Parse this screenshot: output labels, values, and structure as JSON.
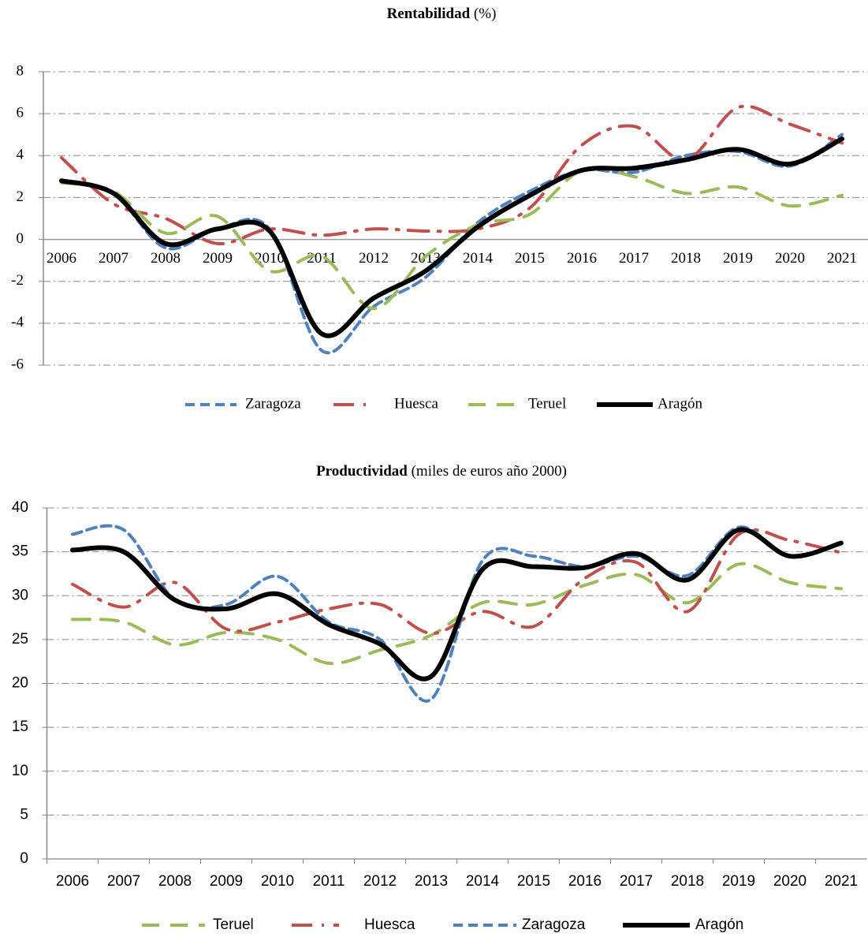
{
  "chart_data": [
    {
      "type": "line",
      "title": "Rentabilidad",
      "subtitle": "(%)",
      "categories": [
        "2006",
        "2007",
        "2008",
        "2009",
        "2010",
        "2011",
        "2012",
        "2013",
        "2014",
        "2015",
        "2016",
        "2017",
        "2018",
        "2019",
        "2020",
        "2021"
      ],
      "ylim": [
        -6,
        8
      ],
      "yticks": [
        -6,
        -4,
        -2,
        0,
        2,
        4,
        6,
        8
      ],
      "grid": true,
      "legend": "bottom",
      "series": [
        {
          "name": "Zaragoza",
          "color": "#4f81bd",
          "line_style": "dash",
          "values": [
            2.8,
            2.2,
            -0.4,
            0.5,
            0.5,
            -5.3,
            -3.2,
            -1.8,
            0.8,
            2.3,
            3.3,
            3.2,
            4.0,
            4.2,
            3.5,
            5.0
          ]
        },
        {
          "name": "Huesca",
          "color": "#c0504d",
          "line_style": "long-dash-dot",
          "values": [
            3.9,
            1.7,
            1.0,
            -0.2,
            0.5,
            0.2,
            0.5,
            0.4,
            0.5,
            1.5,
            4.5,
            5.4,
            3.8,
            6.3,
            5.5,
            4.6
          ]
        },
        {
          "name": "Teruel",
          "color": "#9bbb59",
          "line_style": "long-dash",
          "values": [
            2.7,
            2.3,
            0.3,
            1.1,
            -1.5,
            -0.8,
            -3.3,
            -0.8,
            0.7,
            1.2,
            3.3,
            3.0,
            2.2,
            2.5,
            1.6,
            2.1
          ]
        },
        {
          "name": "Aragón",
          "color": "#000000",
          "line_style": "solid",
          "values": [
            2.8,
            2.2,
            -0.2,
            0.5,
            0.4,
            -4.5,
            -2.8,
            -1.5,
            0.6,
            2.1,
            3.3,
            3.4,
            3.8,
            4.3,
            3.6,
            4.8
          ]
        }
      ]
    },
    {
      "type": "line",
      "title": "Productividad",
      "subtitle": "(miles de euros año 2000)",
      "categories": [
        "2006",
        "2007",
        "2008",
        "2009",
        "2010",
        "2011",
        "2012",
        "2013",
        "2014",
        "2015",
        "2016",
        "2017",
        "2018",
        "2019",
        "2020",
        "2021"
      ],
      "ylim": [
        0,
        40
      ],
      "yticks": [
        0,
        5,
        10,
        15,
        20,
        25,
        30,
        35,
        40
      ],
      "grid": true,
      "legend": "bottom",
      "series": [
        {
          "name": "Teruel",
          "color": "#9bbb59",
          "line_style": "long-dash",
          "values": [
            27.3,
            27.0,
            24.4,
            25.8,
            25.0,
            22.3,
            23.8,
            25.5,
            29.2,
            29.0,
            31.2,
            32.4,
            29.2,
            33.6,
            31.5,
            30.8
          ]
        },
        {
          "name": "Huesca",
          "color": "#c0504d",
          "line_style": "long-dash-dot",
          "values": [
            31.3,
            28.7,
            31.5,
            26.2,
            27.0,
            28.5,
            29.0,
            25.7,
            28.2,
            26.5,
            32.0,
            33.8,
            28.2,
            37.0,
            36.3,
            34.9
          ]
        },
        {
          "name": "Zaragoza",
          "color": "#4f81bd",
          "line_style": "dash",
          "values": [
            37.0,
            37.5,
            29.5,
            29.0,
            32.2,
            27.0,
            25.0,
            18.2,
            34.0,
            34.5,
            33.3,
            34.5,
            32.3,
            37.8,
            34.5,
            36.0
          ]
        },
        {
          "name": "Aragón",
          "color": "#000000",
          "line_style": "solid",
          "values": [
            35.2,
            35.0,
            29.5,
            28.5,
            30.2,
            26.7,
            24.5,
            20.8,
            33.0,
            33.3,
            33.2,
            34.8,
            31.8,
            37.5,
            34.5,
            36.0
          ]
        }
      ]
    }
  ]
}
